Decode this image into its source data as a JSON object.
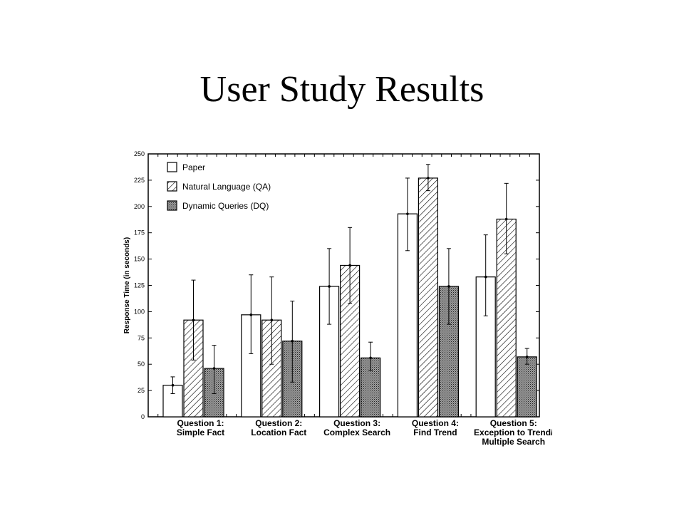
{
  "slide": {
    "title": "User Study Results"
  },
  "chart_data": {
    "type": "bar",
    "ylabel": "Response Time (in seconds)",
    "ylim": [
      0,
      250
    ],
    "yticks": [
      0,
      25,
      50,
      75,
      100,
      125,
      150,
      175,
      200,
      225,
      250
    ],
    "categories": [
      [
        "Question 1:",
        "Simple Fact"
      ],
      [
        "Question 2:",
        "Location Fact"
      ],
      [
        "Question 3:",
        "Complex Search"
      ],
      [
        "Question 4:",
        "Find Trend"
      ],
      [
        "Question 5:",
        "Exception to Trend/",
        "Multiple Search"
      ]
    ],
    "series": [
      {
        "name": "Paper",
        "fill": "white",
        "values": [
          30,
          97,
          124,
          193,
          133
        ],
        "errors": [
          [
            22,
            38
          ],
          [
            60,
            135
          ],
          [
            88,
            160
          ],
          [
            158,
            227
          ],
          [
            96,
            173
          ]
        ]
      },
      {
        "name": "Natural Language (QA)",
        "fill": "hatch",
        "values": [
          92,
          92,
          144,
          227,
          188
        ],
        "errors": [
          [
            54,
            130
          ],
          [
            50,
            133
          ],
          [
            108,
            180
          ],
          [
            215,
            240
          ],
          [
            155,
            222
          ]
        ]
      },
      {
        "name": "Dynamic Queries (DQ)",
        "fill": "dots",
        "values": [
          46,
          72,
          56,
          124,
          57
        ],
        "errors": [
          [
            22,
            68
          ],
          [
            33,
            110
          ],
          [
            44,
            71
          ],
          [
            88,
            160
          ],
          [
            50,
            65
          ]
        ]
      }
    ],
    "legend_position": "top-left",
    "grid": false
  }
}
